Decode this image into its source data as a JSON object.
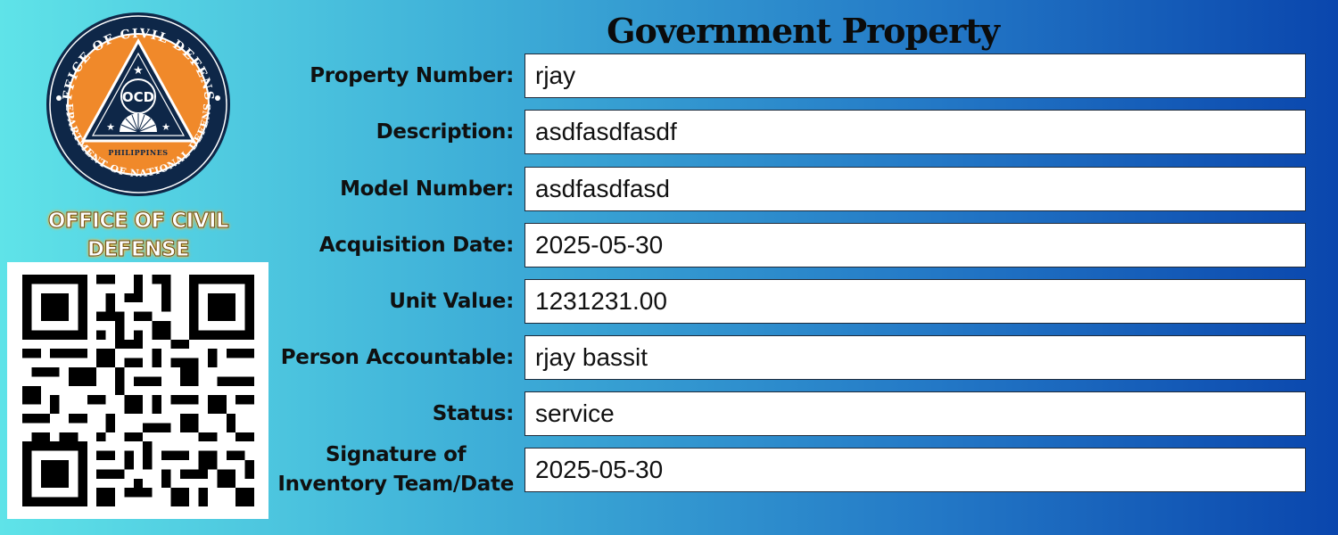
{
  "header": {
    "title": "Government Property"
  },
  "seal": {
    "outer_ring_text": "OFFICE OF CIVIL DEFENSE",
    "bottom_ring_text": "DEPARTMENT OF NATIONAL DEFENSE",
    "center_text": "OCD",
    "country_text": "PHILIPPINES"
  },
  "agency": {
    "line1": "OFFICE OF CIVIL",
    "line2": "DEFENSE"
  },
  "fields": {
    "property_number": {
      "label": "Property Number:",
      "value": "rjay"
    },
    "description": {
      "label": "Description:",
      "value": "asdfasdfasdf"
    },
    "model_number": {
      "label": "Model Number:",
      "value": "asdfasdfasd"
    },
    "acquisition_date": {
      "label": "Acquisition Date:",
      "value": "2025-05-30"
    },
    "unit_value": {
      "label": "Unit Value:",
      "value": "1231231.00"
    },
    "person_accountable": {
      "label": "Person Accountable:",
      "value": "rjay bassit"
    },
    "status": {
      "label": "Status:",
      "value": "service"
    },
    "signature": {
      "label_line1": "Signature of",
      "label_line2": "Inventory Team/Date",
      "value": "2025-05-30"
    }
  },
  "colors": {
    "background_start": "#5fe3e8",
    "background_end": "#0a46ad",
    "seal_navy": "#0e2748",
    "seal_orange": "#f0892a",
    "agency_glow": "#f2b544"
  },
  "icons": [
    "ocd-seal-icon",
    "qr-code-icon"
  ]
}
